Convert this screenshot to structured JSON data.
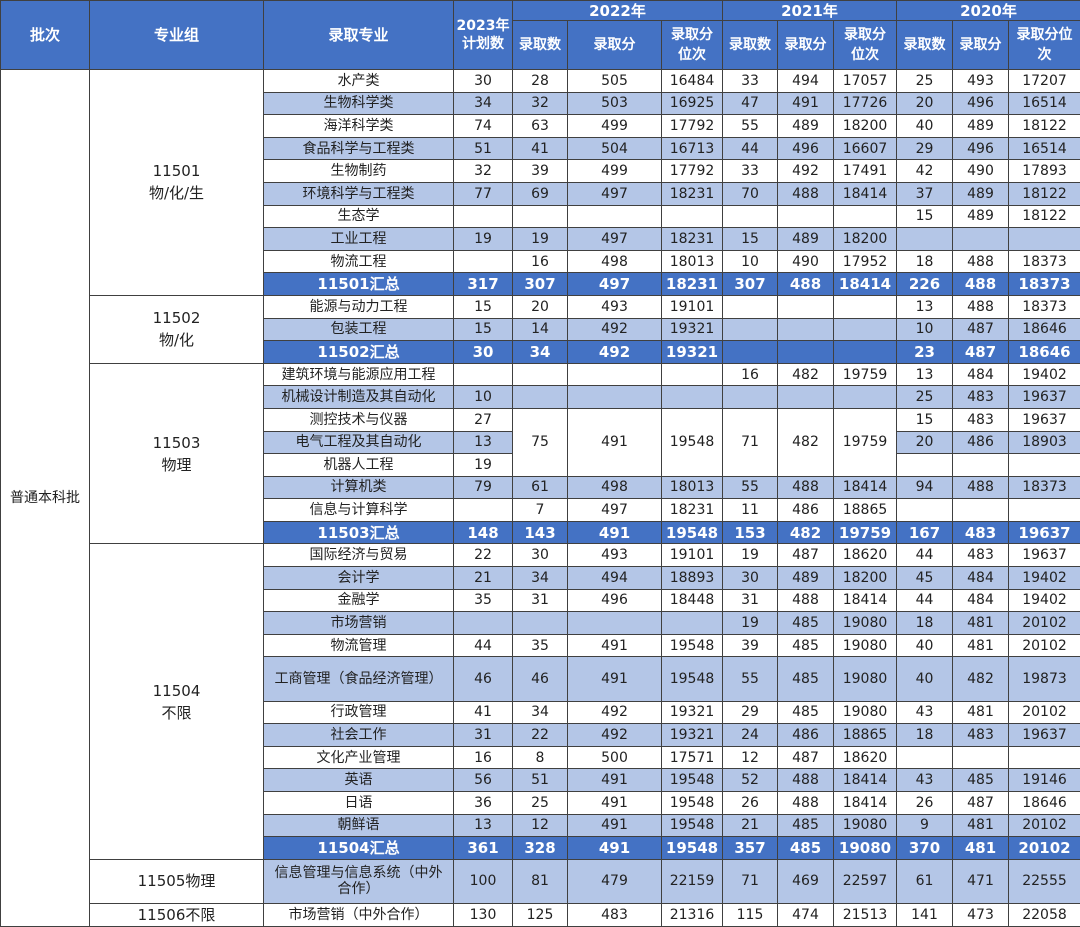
{
  "header": {
    "pici": "批次",
    "zhuanyezu": "专业组",
    "luqu_zhuanye": "录取专业",
    "plan_2023": "2023年\n计划数",
    "years": [
      "2022年",
      "2021年",
      "2020年"
    ],
    "sub": [
      "录取数",
      "录取分",
      "录取分位次",
      "录取数",
      "录取分",
      "录取分位次",
      "录取数",
      "录取分",
      "录取分位次"
    ]
  },
  "batch": "普通本科批",
  "groups": [
    {
      "label": "11501\n物/化/生",
      "rows": [
        {
          "major": "水产类",
          "plan": "30",
          "c22": "28",
          "s22": "505",
          "r22": "16484",
          "c21": "33",
          "s21": "494",
          "r21": "17057",
          "c20": "25",
          "s20": "493",
          "r20": "17207"
        },
        {
          "major": "生物科学类",
          "plan": "34",
          "c22": "32",
          "s22": "503",
          "r22": "16925",
          "c21": "47",
          "s21": "491",
          "r21": "17726",
          "c20": "20",
          "s20": "496",
          "r20": "16514"
        },
        {
          "major": "海洋科学类",
          "plan": "74",
          "c22": "63",
          "s22": "499",
          "r22": "17792",
          "c21": "55",
          "s21": "489",
          "r21": "18200",
          "c20": "40",
          "s20": "489",
          "r20": "18122"
        },
        {
          "major": "食品科学与工程类",
          "plan": "51",
          "c22": "41",
          "s22": "504",
          "r22": "16713",
          "c21": "44",
          "s21": "496",
          "r21": "16607",
          "c20": "29",
          "s20": "496",
          "r20": "16514"
        },
        {
          "major": "生物制药",
          "plan": "32",
          "c22": "39",
          "s22": "499",
          "r22": "17792",
          "c21": "33",
          "s21": "492",
          "r21": "17491",
          "c20": "42",
          "s20": "490",
          "r20": "17893"
        },
        {
          "major": "环境科学与工程类",
          "plan": "77",
          "c22": "69",
          "s22": "497",
          "r22": "18231",
          "c21": "70",
          "s21": "488",
          "r21": "18414",
          "c20": "37",
          "s20": "489",
          "r20": "18122"
        },
        {
          "major": "生态学",
          "plan": "",
          "c22": "",
          "s22": "",
          "r22": "",
          "c21": "",
          "s21": "",
          "r21": "",
          "c20": "15",
          "s20": "489",
          "r20": "18122"
        },
        {
          "major": "工业工程",
          "plan": "19",
          "c22": "19",
          "s22": "497",
          "r22": "18231",
          "c21": "15",
          "s21": "489",
          "r21": "18200",
          "c20": "",
          "s20": "",
          "r20": ""
        },
        {
          "major": "物流工程",
          "plan": "",
          "c22": "16",
          "s22": "498",
          "r22": "18013",
          "c21": "10",
          "s21": "490",
          "r21": "17952",
          "c20": "18",
          "s20": "488",
          "r20": "18373"
        }
      ],
      "total": {
        "major": "11501汇总",
        "plan": "317",
        "c22": "307",
        "s22": "497",
        "r22": "18231",
        "c21": "307",
        "s21": "488",
        "r21": "18414",
        "c20": "226",
        "s20": "488",
        "r20": "18373"
      }
    },
    {
      "label": "11502\n物/化",
      "rows": [
        {
          "major": "能源与动力工程",
          "plan": "15",
          "c22": "20",
          "s22": "493",
          "r22": "19101",
          "c21": "",
          "s21": "",
          "r21": "",
          "c20": "13",
          "s20": "488",
          "r20": "18373"
        },
        {
          "major": "包装工程",
          "plan": "15",
          "c22": "14",
          "s22": "492",
          "r22": "19321",
          "c21": "",
          "s21": "",
          "r21": "",
          "c20": "10",
          "s20": "487",
          "r20": "18646"
        }
      ],
      "total": {
        "major": "11502汇总",
        "plan": "30",
        "c22": "34",
        "s22": "492",
        "r22": "19321",
        "c21": "",
        "s21": "",
        "r21": "",
        "c20": "23",
        "s20": "487",
        "r20": "18646"
      }
    },
    {
      "label": "11503\n物理",
      "rows": [
        {
          "major": "建筑环境与能源应用工程",
          "plan": "",
          "c21": "16",
          "s21": "482",
          "r21": "19759",
          "c20": "13",
          "s20": "484",
          "r20": "19402"
        },
        {
          "major": "机械设计制造及其自动化",
          "plan": "10",
          "c20": "25",
          "s20": "483",
          "r20": "19637"
        },
        {
          "major": "测控技术与仪器",
          "plan": "27",
          "c20": "15",
          "s20": "483",
          "r20": "19637"
        },
        {
          "major": "电气工程及其自动化",
          "plan": "13",
          "c20": "20",
          "s20": "486",
          "r20": "18903"
        },
        {
          "major": "机器人工程",
          "plan": "19"
        },
        {
          "major": "计算机类",
          "plan": "79",
          "c22": "61",
          "s22": "498",
          "r22": "18013",
          "c21": "55",
          "s21": "488",
          "r21": "18414",
          "c20": "94",
          "s20": "488",
          "r20": "18373"
        },
        {
          "major": "信息与计算科学",
          "plan": "",
          "c22": "7",
          "s22": "497",
          "r22": "18231",
          "c21": "11",
          "s21": "486",
          "r21": "18865",
          "c20": "",
          "s20": "",
          "r20": ""
        }
      ],
      "merged_2022": {
        "c22": "75",
        "s22": "491",
        "r22": "19548"
      },
      "merged_2021": {
        "c21": "71",
        "s21": "482",
        "r21": "19759"
      },
      "total": {
        "major": "11503汇总",
        "plan": "148",
        "c22": "143",
        "s22": "491",
        "r22": "19548",
        "c21": "153",
        "s21": "482",
        "r21": "19759",
        "c20": "167",
        "s20": "483",
        "r20": "19637"
      }
    },
    {
      "label": "11504\n不限",
      "rows": [
        {
          "major": "国际经济与贸易",
          "plan": "22",
          "c22": "30",
          "s22": "493",
          "r22": "19101",
          "c21": "19",
          "s21": "487",
          "r21": "18620",
          "c20": "44",
          "s20": "483",
          "r20": "19637"
        },
        {
          "major": "会计学",
          "plan": "21",
          "c22": "34",
          "s22": "494",
          "r22": "18893",
          "c21": "30",
          "s21": "489",
          "r21": "18200",
          "c20": "45",
          "s20": "484",
          "r20": "19402"
        },
        {
          "major": "金融学",
          "plan": "35",
          "c22": "31",
          "s22": "496",
          "r22": "18448",
          "c21": "31",
          "s21": "488",
          "r21": "18414",
          "c20": "44",
          "s20": "484",
          "r20": "19402"
        },
        {
          "major": "市场营销",
          "plan": "",
          "c22": "",
          "s22": "",
          "r22": "",
          "c21": "19",
          "s21": "485",
          "r21": "19080",
          "c20": "18",
          "s20": "481",
          "r20": "20102"
        },
        {
          "major": "物流管理",
          "plan": "44",
          "c22": "35",
          "s22": "491",
          "r22": "19548",
          "c21": "39",
          "s21": "485",
          "r21": "19080",
          "c20": "40",
          "s20": "481",
          "r20": "20102"
        },
        {
          "major": "工商管理（食品经济管理）",
          "plan": "46",
          "c22": "46",
          "s22": "491",
          "r22": "19548",
          "c21": "55",
          "s21": "485",
          "r21": "19080",
          "c20": "40",
          "s20": "482",
          "r20": "19873",
          "tall": true
        },
        {
          "major": "行政管理",
          "plan": "41",
          "c22": "34",
          "s22": "492",
          "r22": "19321",
          "c21": "29",
          "s21": "485",
          "r21": "19080",
          "c20": "43",
          "s20": "481",
          "r20": "20102"
        },
        {
          "major": "社会工作",
          "plan": "31",
          "c22": "22",
          "s22": "492",
          "r22": "19321",
          "c21": "24",
          "s21": "486",
          "r21": "18865",
          "c20": "18",
          "s20": "483",
          "r20": "19637"
        },
        {
          "major": "文化产业管理",
          "plan": "16",
          "c22": "8",
          "s22": "500",
          "r22": "17571",
          "c21": "12",
          "s21": "487",
          "r21": "18620",
          "c20": "",
          "s20": "",
          "r20": ""
        },
        {
          "major": "英语",
          "plan": "56",
          "c22": "51",
          "s22": "491",
          "r22": "19548",
          "c21": "52",
          "s21": "488",
          "r21": "18414",
          "c20": "43",
          "s20": "485",
          "r20": "19146"
        },
        {
          "major": "日语",
          "plan": "36",
          "c22": "25",
          "s22": "491",
          "r22": "19548",
          "c21": "26",
          "s21": "488",
          "r21": "18414",
          "c20": "26",
          "s20": "487",
          "r20": "18646"
        },
        {
          "major": "朝鲜语",
          "plan": "13",
          "c22": "12",
          "s22": "491",
          "r22": "19548",
          "c21": "21",
          "s21": "485",
          "r21": "19080",
          "c20": "9",
          "s20": "481",
          "r20": "20102"
        }
      ],
      "total": {
        "major": "11504汇总",
        "plan": "361",
        "c22": "328",
        "s22": "491",
        "r22": "19548",
        "c21": "357",
        "s21": "485",
        "r21": "19080",
        "c20": "370",
        "s20": "481",
        "r20": "20102"
      }
    }
  ],
  "extra_rows": [
    {
      "group": "11505物理",
      "major": "信息管理与信息系统（中外合作）",
      "plan": "100",
      "c22": "81",
      "s22": "479",
      "r22": "22159",
      "c21": "71",
      "s21": "469",
      "r21": "22597",
      "c20": "61",
      "s20": "471",
      "r20": "22555"
    },
    {
      "group": "11506不限",
      "major": "市场营销（中外合作）",
      "plan": "130",
      "c22": "125",
      "s22": "483",
      "r22": "21316",
      "c21": "115",
      "s21": "474",
      "r21": "21513",
      "c20": "141",
      "s20": "473",
      "r20": "22058"
    }
  ]
}
